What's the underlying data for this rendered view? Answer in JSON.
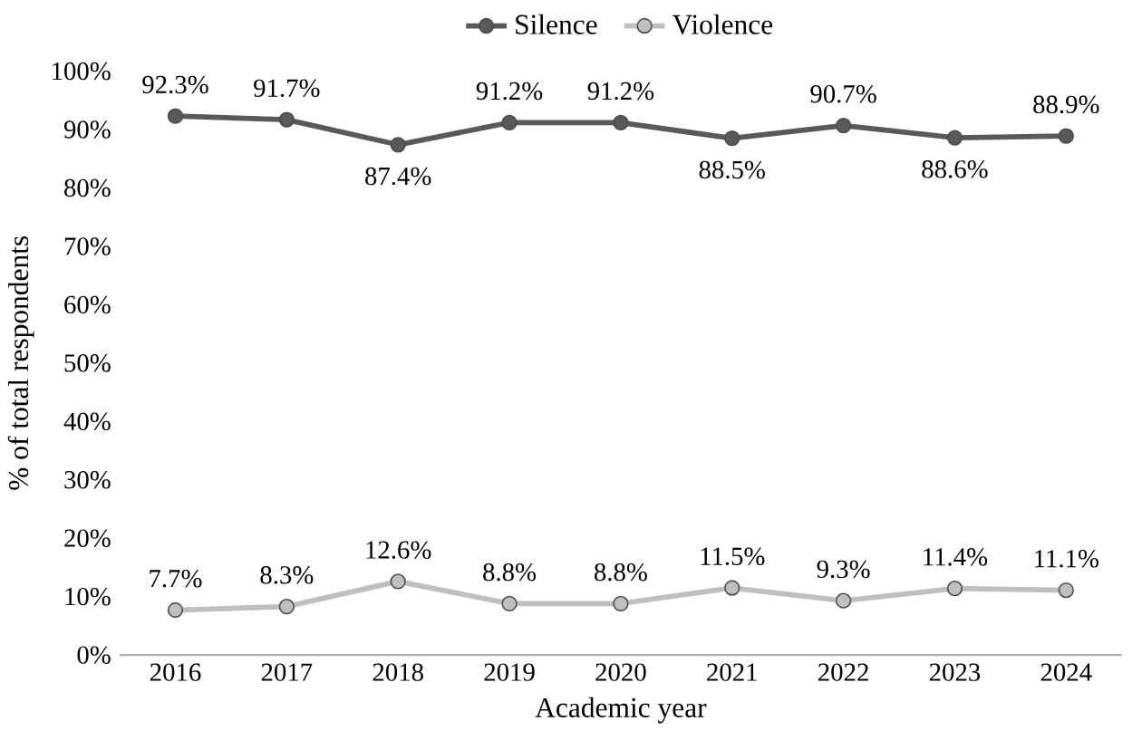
{
  "chart_data": {
    "type": "line",
    "xlabel": "Academic year",
    "ylabel": "% of total respondents",
    "categories": [
      "2016",
      "2017",
      "2018",
      "2019",
      "2020",
      "2021",
      "2022",
      "2023",
      "2024"
    ],
    "series": [
      {
        "name": "Silence",
        "color": "#595959",
        "values": [
          92.3,
          91.7,
          87.4,
          91.2,
          91.2,
          88.5,
          90.7,
          88.6,
          88.9
        ],
        "value_labels": [
          "92.3%",
          "91.7%",
          "87.4%",
          "91.2%",
          "91.2%",
          "88.5%",
          "90.7%",
          "88.6%",
          "88.9%"
        ]
      },
      {
        "name": "Violence",
        "color": "#bfbfbf",
        "values": [
          7.7,
          8.3,
          12.6,
          8.8,
          8.8,
          11.5,
          9.3,
          11.4,
          11.1
        ],
        "value_labels": [
          "7.7%",
          "8.3%",
          "12.6%",
          "8.8%",
          "8.8%",
          "11.5%",
          "9.3%",
          "11.4%",
          "11.1%"
        ]
      }
    ],
    "ylim": [
      0,
      100
    ],
    "yticks": [
      {
        "value": 0,
        "label": "0%"
      },
      {
        "value": 10,
        "label": "10%"
      },
      {
        "value": 20,
        "label": "20%"
      },
      {
        "value": 30,
        "label": "30%"
      },
      {
        "value": 40,
        "label": "40%"
      },
      {
        "value": 50,
        "label": "50%"
      },
      {
        "value": 60,
        "label": "60%"
      },
      {
        "value": 70,
        "label": "70%"
      },
      {
        "value": 80,
        "label": "80%"
      },
      {
        "value": 90,
        "label": "90%"
      },
      {
        "value": 100,
        "label": "100%"
      }
    ],
    "grid": false,
    "legend": "top",
    "marker": "circle",
    "line_style": "solid"
  }
}
